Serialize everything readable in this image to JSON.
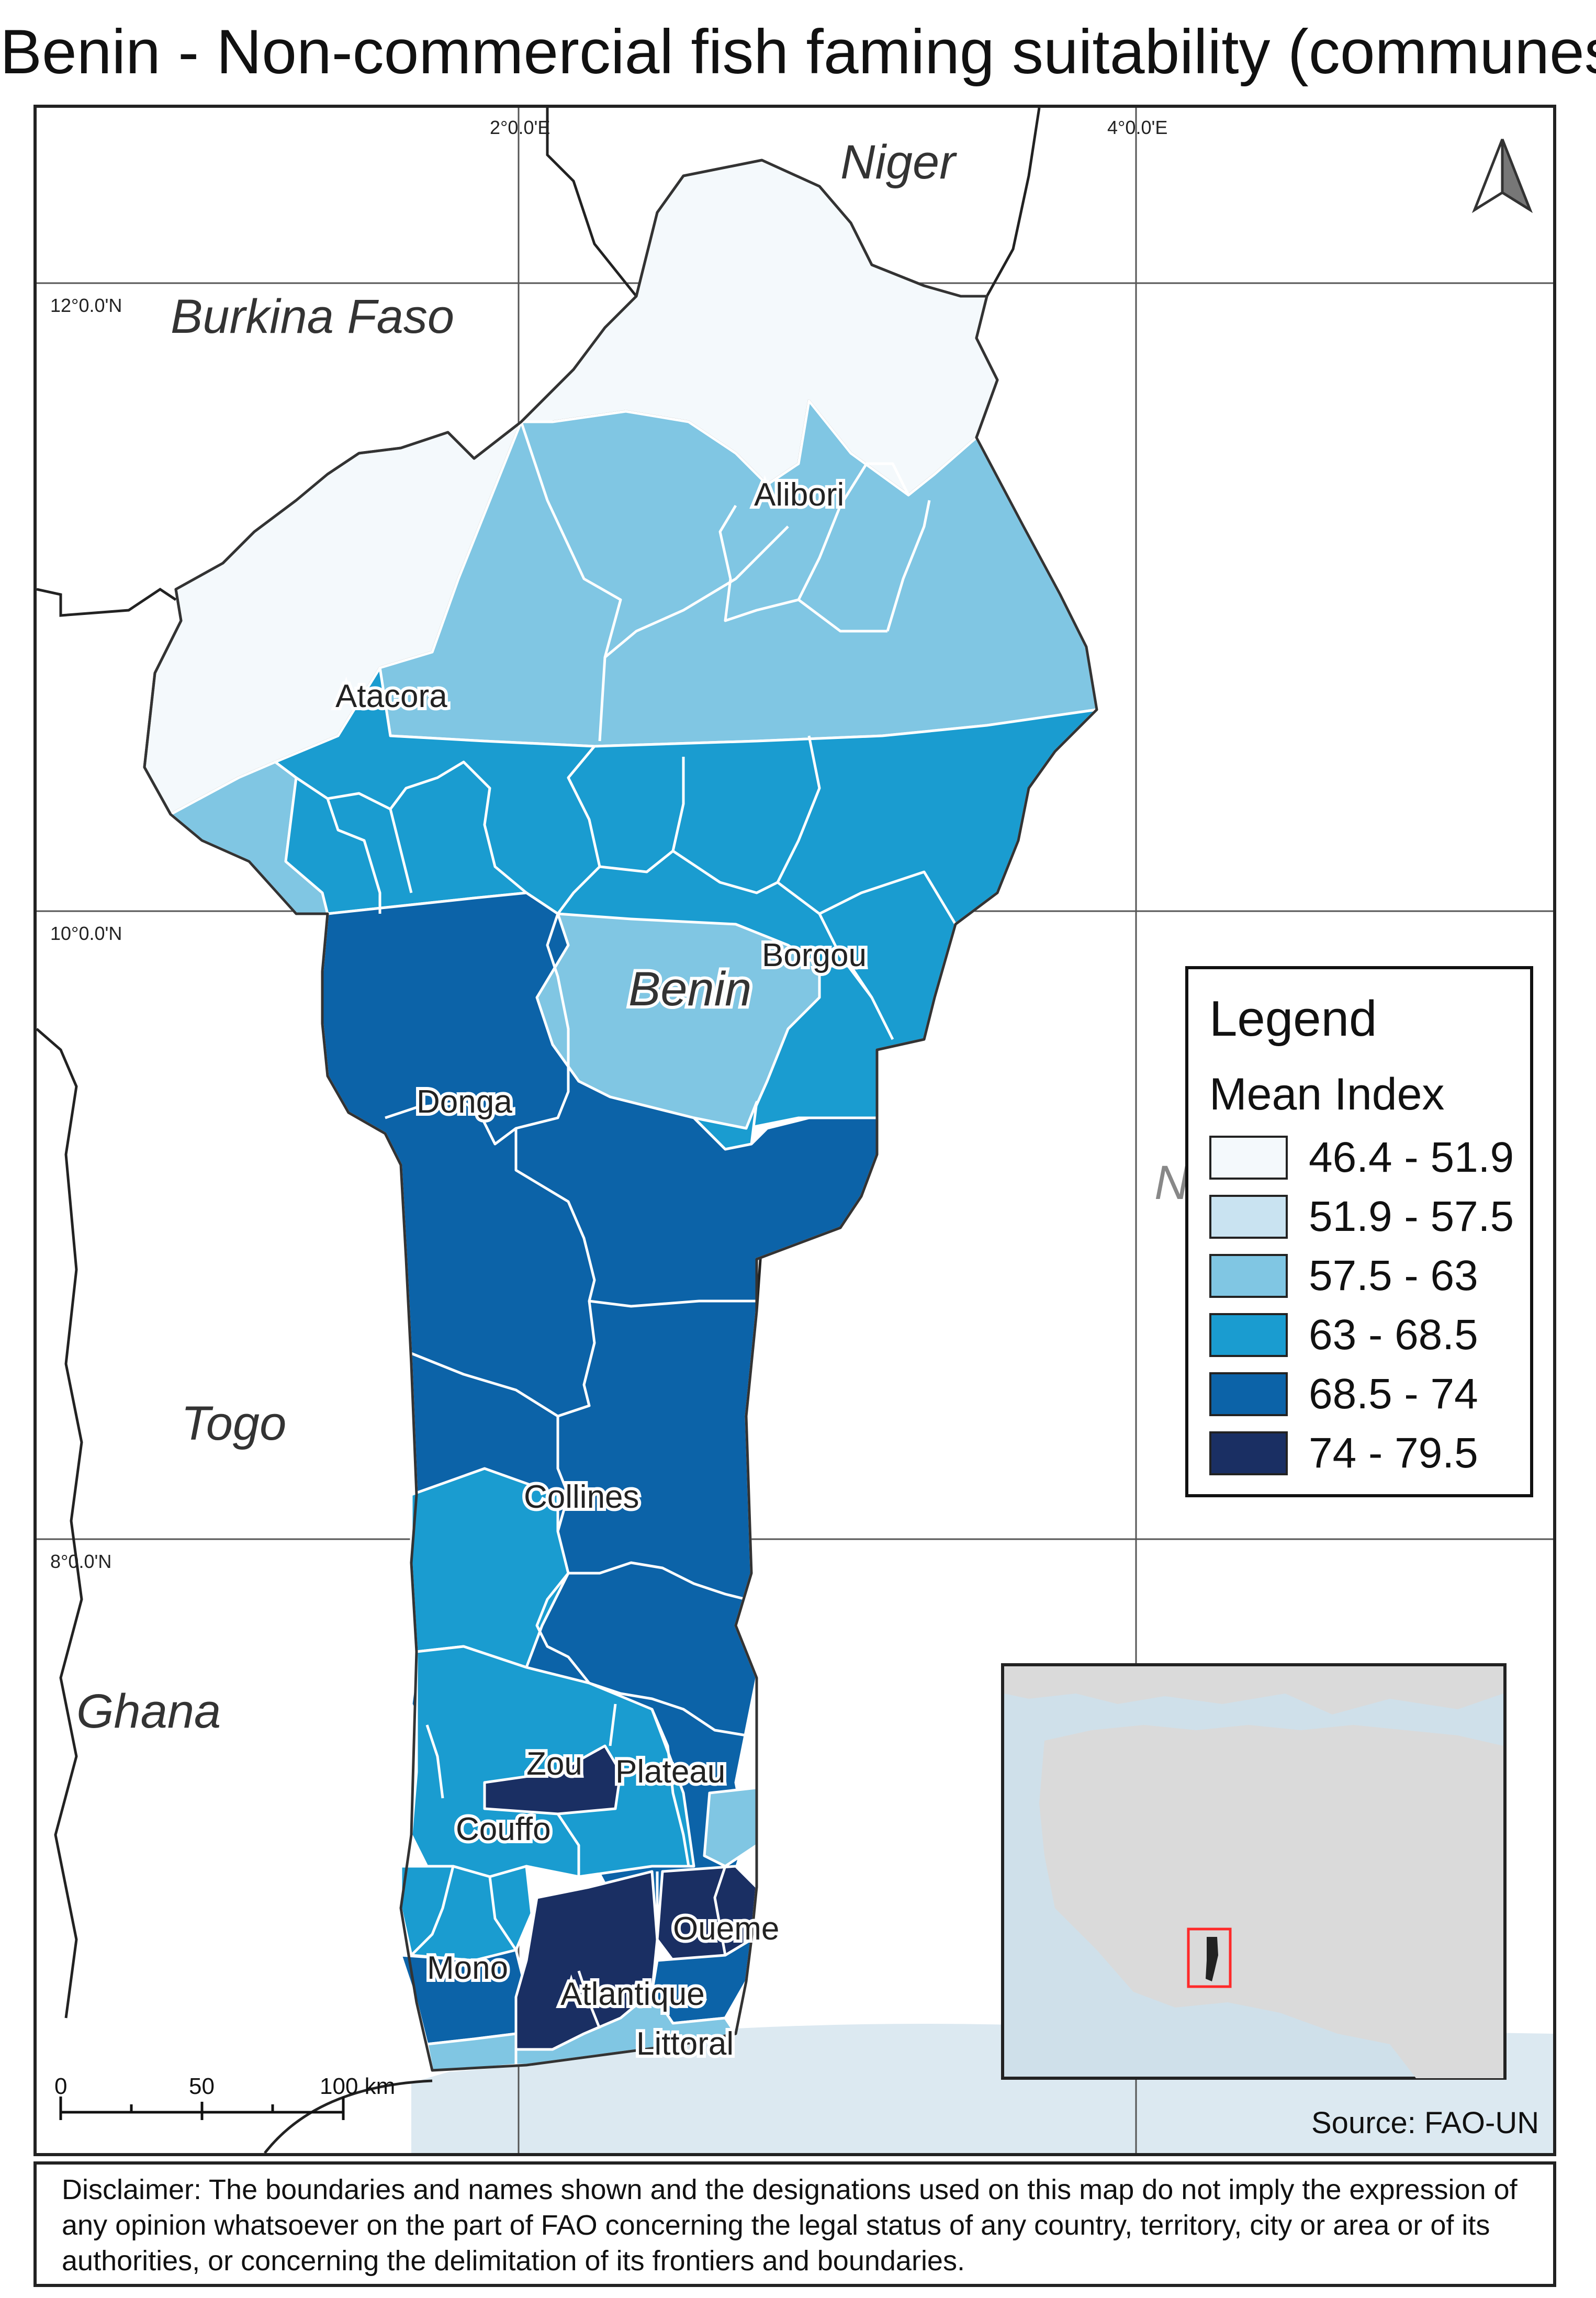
{
  "title": "Benin - Non-commercial fish faming suitability (communes)",
  "grid_labels": {
    "lon_2": "2°0.0'E",
    "lon_4": "4°0.0'E",
    "lat_12": "12°0.0'N",
    "lat_10": "10°0.0'N",
    "lat_8": "8°0.0'N"
  },
  "countries": {
    "niger": "Niger",
    "burkina": "Burkina Faso",
    "benin": "Benin",
    "nigeria": "Nigeria",
    "togo": "Togo",
    "ghana": "Ghana"
  },
  "departments": {
    "alibori": "Alibori",
    "atacora": "Atacora",
    "borgou": "Borgou",
    "donga": "Donga",
    "collines": "Collines",
    "zou": "Zou",
    "plateau": "Plateau",
    "couffo": "Couffo",
    "oueme": "Oueme",
    "mono": "Mono",
    "atlantique": "Atlantique",
    "littoral": "Littoral"
  },
  "legend": {
    "title": "Legend",
    "subtitle": "Mean Index",
    "classes": [
      {
        "label": "46.4 - 51.9",
        "color": "#f4f9fc"
      },
      {
        "label": "51.9 - 57.5",
        "color": "#c9e3f1"
      },
      {
        "label": "57.5 - 63",
        "color": "#80c6e3"
      },
      {
        "label": "63 - 68.5",
        "color": "#1a9cd0"
      },
      {
        "label": "68.5 - 74",
        "color": "#0c63a8"
      },
      {
        "label": "74 - 79.5",
        "color": "#1a2f63"
      }
    ]
  },
  "scale_bar": {
    "tick0": "0",
    "tick50": "50",
    "tick100": "100 km"
  },
  "source": "Source: FAO-UN",
  "disclaimer": "Disclaimer: The boundaries and names shown and the designations used on this map do not imply the expression of any opinion whatsoever on the part of FAO concerning the legal status of any country, territory, city or area or of its authorities, or concerning the delimitation of its frontiers and boundaries.",
  "north_arrow": "north-arrow-icon",
  "colors": {
    "sea": "#dce9f1",
    "land": "#ffffff",
    "inset_land": "#dadada",
    "inset_sea": "#cfe0ea",
    "highlight": "#ff2a2a"
  }
}
